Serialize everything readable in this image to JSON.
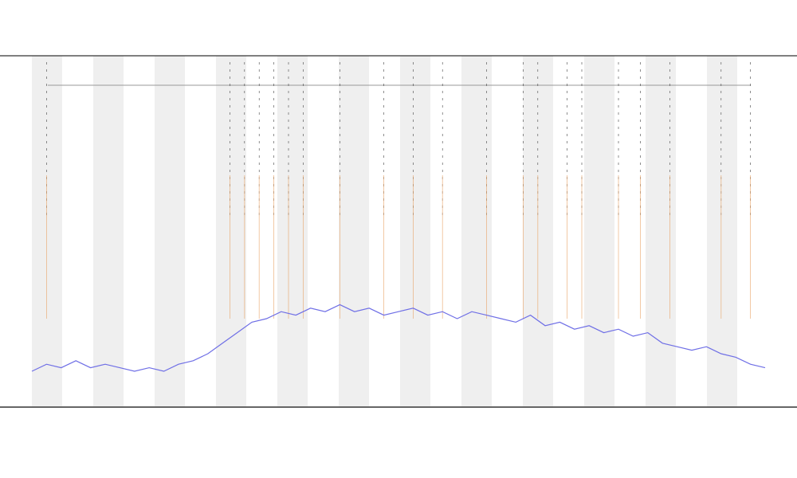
{
  "chart_data": {
    "type": "line",
    "x": [
      0,
      2,
      4,
      6,
      8,
      10,
      12,
      14,
      16,
      18,
      20,
      22,
      24,
      26,
      28,
      30,
      32,
      34,
      36,
      38,
      40,
      42,
      44,
      46,
      48,
      50,
      52,
      54,
      56,
      58,
      60,
      62,
      64,
      66,
      68,
      70,
      72,
      74,
      76,
      78,
      80,
      82,
      84,
      86,
      88,
      90,
      92,
      94,
      96,
      98,
      100
    ],
    "values": [
      10,
      12,
      11,
      13,
      11,
      12,
      11,
      10,
      11,
      10,
      12,
      13,
      15,
      18,
      21,
      24,
      25,
      27,
      26,
      28,
      27,
      29,
      27,
      28,
      26,
      27,
      28,
      26,
      27,
      25,
      27,
      26,
      25,
      24,
      26,
      23,
      24,
      22,
      23,
      21,
      22,
      20,
      21,
      18,
      17,
      16,
      17,
      15,
      14,
      12,
      11
    ],
    "color": "#6f6fe6",
    "events": [
      2,
      27,
      29,
      31,
      33,
      35,
      37,
      42,
      48,
      52,
      56,
      62,
      67,
      69,
      73,
      75,
      80,
      83,
      87,
      94,
      98
    ],
    "event_color": "#e8a060",
    "xlim": [
      0,
      100
    ],
    "ylim": [
      0,
      100
    ]
  }
}
